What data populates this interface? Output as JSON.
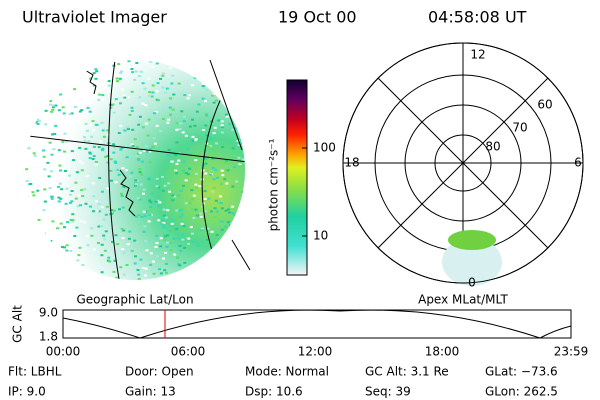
{
  "header": {
    "title": "Ultraviolet Imager",
    "date": "19 Oct 00",
    "time": "04:58:08 UT"
  },
  "colorbar": {
    "label": "photon cm⁻²s⁻¹",
    "ticks": [
      "100",
      "10"
    ]
  },
  "polar_plot": {
    "mlt_labels": [
      "12",
      "18",
      "6",
      "0"
    ],
    "lat_labels": [
      "60",
      "70",
      "80"
    ]
  },
  "captions": {
    "left": "Geographic Lat/Lon",
    "right": "Apex MLat/MLT"
  },
  "altitude_plot": {
    "axis_label": "GC Alt",
    "y_labels": [
      "9.0",
      "1.8"
    ],
    "time_labels": [
      "00:00",
      "06:00",
      "12:00",
      "18:00",
      "23:59"
    ]
  },
  "footer": {
    "rows": [
      [
        "Flt: LBHL",
        "Door: Open",
        "Mode: Normal",
        "GC Alt: 3.1 Re",
        "GLat: −73.6"
      ],
      [
        "IP: 9.0",
        "Gain: 13",
        "Dsp: 10.6",
        "Seq: 39",
        "GLon: 262.5"
      ]
    ]
  }
}
